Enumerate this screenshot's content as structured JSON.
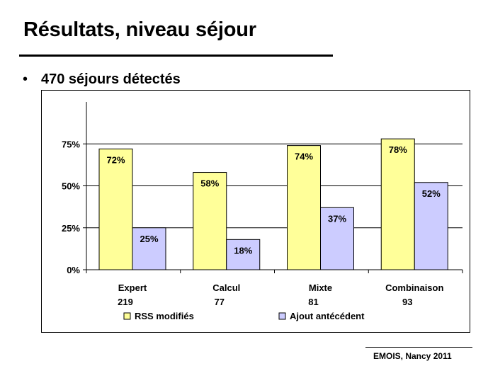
{
  "slide": {
    "title": "Résultats, niveau séjour",
    "bullet_symbol": "•",
    "bullet_text": "470 séjours détectés",
    "footer": "EMOIS, Nancy 2011"
  },
  "chart_data": {
    "type": "bar",
    "categories": [
      "Expert",
      "Calcul",
      "Mixte",
      "Combinaison"
    ],
    "category_counts": [
      "219",
      "77",
      "81",
      "93"
    ],
    "series": [
      {
        "name": "RSS modifiés",
        "values": [
          72,
          58,
          74,
          78
        ],
        "labels": [
          "72%",
          "58%",
          "74%",
          "78%"
        ],
        "color": "#ffff99"
      },
      {
        "name": "Ajout antécédent",
        "values": [
          25,
          18,
          37,
          52
        ],
        "labels": [
          "25%",
          "18%",
          "37%",
          "52%"
        ],
        "color": "#ccccff"
      }
    ],
    "ylim": [
      0,
      100
    ],
    "yticks": [
      0,
      25,
      50,
      75
    ],
    "ytick_labels": [
      "0%",
      "25%",
      "50%",
      "75%"
    ],
    "grid": true,
    "legend_position": "bottom",
    "title": "",
    "xlabel": "",
    "ylabel": ""
  }
}
